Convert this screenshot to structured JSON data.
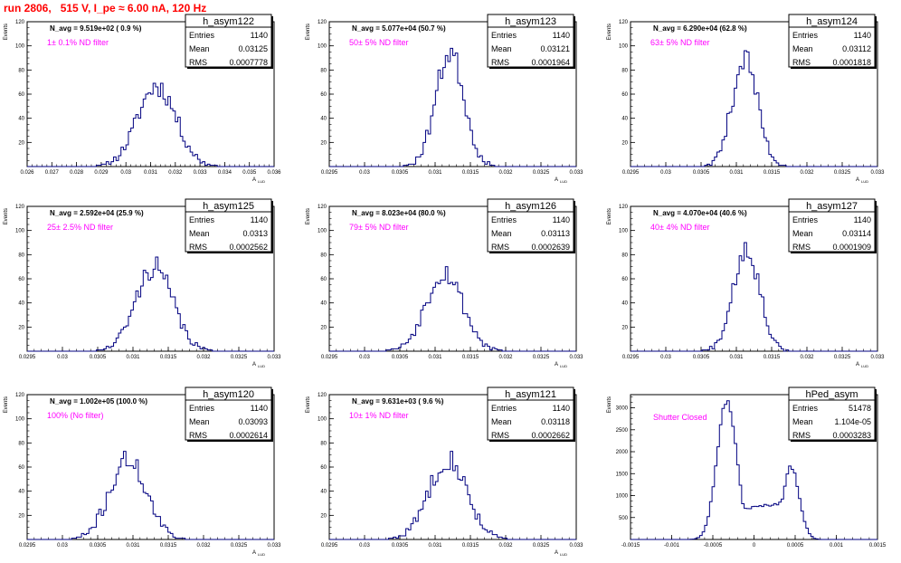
{
  "title": "run 2806,   515 V, I_pe ≈ 6.00 nA, 120 Hz",
  "stats_labels": {
    "entries": "Entries",
    "mean": "Mean",
    "rms": "RMS"
  },
  "colors": {
    "hist_line": "#000080",
    "annotation": "#ff00ff",
    "title": "#ff0000"
  },
  "chart_data": [
    {
      "type": "bar",
      "name": "h_asym122",
      "navg": "N_avg = 9.519e+02 ( 0.9 %)",
      "annotation": "1± 0.1% ND filter",
      "stats": {
        "entries": "1140",
        "mean": "0.03125",
        "rms": "0.0007778"
      },
      "ylabel": "Events",
      "xlabel": "A",
      "xlim": [
        0.026,
        0.036
      ],
      "ylim": [
        0,
        120
      ],
      "xticks": [
        "0.026",
        "0.027",
        "0.028",
        "0.029",
        "0.03",
        "0.031",
        "0.032",
        "0.033",
        "0.034",
        "0.035",
        "0.036"
      ],
      "yticks": [
        "20",
        "40",
        "60",
        "80",
        "100",
        "120"
      ],
      "hist": {
        "mean": 0.03125,
        "sigma": 0.00078,
        "peak": 67,
        "sigma2": 0,
        "peak2": 0,
        "mean2": 0,
        "seed": 11
      }
    },
    {
      "type": "bar",
      "name": "h_asym123",
      "navg": "N_avg = 5.077e+04 (50.7 %)",
      "annotation": "50± 5% ND filter",
      "stats": {
        "entries": "1140",
        "mean": "0.03121",
        "rms": "0.0001964"
      },
      "ylabel": "Events",
      "xlabel": "A",
      "xlim": [
        0.0295,
        0.033
      ],
      "ylim": [
        0,
        120
      ],
      "xticks": [
        "0.0295",
        "0.03",
        "0.0305",
        "0.031",
        "0.0315",
        "0.032",
        "0.0325",
        "0.033"
      ],
      "yticks": [
        "20",
        "40",
        "60",
        "80",
        "100",
        "120"
      ],
      "hist": {
        "mean": 0.03121,
        "sigma": 0.0002,
        "peak": 95,
        "sigma2": 0,
        "peak2": 0,
        "mean2": 0,
        "seed": 23
      }
    },
    {
      "type": "bar",
      "name": "h_asym124",
      "navg": "N_avg = 6.290e+04 (62.8 %)",
      "annotation": "63± 5% ND filter",
      "stats": {
        "entries": "1140",
        "mean": "0.03112",
        "rms": "0.0001818"
      },
      "ylabel": "Events",
      "xlabel": "A",
      "xlim": [
        0.0295,
        0.033
      ],
      "ylim": [
        0,
        120
      ],
      "xticks": [
        "0.0295",
        "0.03",
        "0.0305",
        "0.031",
        "0.0315",
        "0.032",
        "0.0325",
        "0.033"
      ],
      "yticks": [
        "20",
        "40",
        "60",
        "80",
        "100",
        "120"
      ],
      "hist": {
        "mean": 0.03112,
        "sigma": 0.00018,
        "peak": 90,
        "sigma2": 0,
        "peak2": 0,
        "mean2": 0,
        "seed": 37
      }
    },
    {
      "type": "bar",
      "name": "h_asym125",
      "navg": "N_avg = 2.592e+04 (25.9 %)",
      "annotation": "25± 2.5% ND filter",
      "stats": {
        "entries": "1140",
        "mean": "0.0313",
        "rms": "0.0002562"
      },
      "ylabel": "Events",
      "xlabel": "A",
      "xlim": [
        0.0295,
        0.033
      ],
      "ylim": [
        0,
        120
      ],
      "xticks": [
        "0.0295",
        "0.03",
        "0.0305",
        "0.031",
        "0.0315",
        "0.032",
        "0.0325",
        "0.033"
      ],
      "yticks": [
        "20",
        "40",
        "60",
        "80",
        "100",
        "120"
      ],
      "hist": {
        "mean": 0.0313,
        "sigma": 0.00026,
        "peak": 70,
        "sigma2": 0,
        "peak2": 0,
        "mean2": 0,
        "seed": 41
      }
    },
    {
      "type": "bar",
      "name": "h_asym126",
      "navg": "N_avg = 8.023e+04 (80.0 %)",
      "annotation": "79± 5% ND filter",
      "stats": {
        "entries": "1140",
        "mean": "0.03113",
        "rms": "0.0002639"
      },
      "ylabel": "Events",
      "xlabel": "A",
      "xlim": [
        0.0295,
        0.033
      ],
      "ylim": [
        0,
        120
      ],
      "xticks": [
        "0.0295",
        "0.03",
        "0.0305",
        "0.031",
        "0.0315",
        "0.032",
        "0.0325",
        "0.033"
      ],
      "yticks": [
        "20",
        "40",
        "60",
        "80",
        "100",
        "120"
      ],
      "hist": {
        "mean": 0.03113,
        "sigma": 0.00026,
        "peak": 66,
        "sigma2": 0,
        "peak2": 0,
        "mean2": 0,
        "seed": 53
      }
    },
    {
      "type": "bar",
      "name": "h_asym127",
      "navg": "N_avg = 4.070e+04 (40.6 %)",
      "annotation": "40± 4% ND filter",
      "stats": {
        "entries": "1140",
        "mean": "0.03114",
        "rms": "0.0001909"
      },
      "ylabel": "Events",
      "xlabel": "A",
      "xlim": [
        0.0295,
        0.033
      ],
      "ylim": [
        0,
        120
      ],
      "xticks": [
        "0.0295",
        "0.03",
        "0.0305",
        "0.031",
        "0.0315",
        "0.032",
        "0.0325",
        "0.033"
      ],
      "yticks": [
        "20",
        "40",
        "60",
        "80",
        "100",
        "120"
      ],
      "hist": {
        "mean": 0.03114,
        "sigma": 0.00019,
        "peak": 86,
        "sigma2": 0,
        "peak2": 0,
        "mean2": 0,
        "seed": 67
      }
    },
    {
      "type": "bar",
      "name": "h_asym120",
      "navg": "N_avg = 1.002e+05 (100.0 %)",
      "annotation": "100% (No filter)",
      "stats": {
        "entries": "1140",
        "mean": "0.03093",
        "rms": "0.0002614"
      },
      "ylabel": "Events",
      "xlabel": "A",
      "xlim": [
        0.0295,
        0.033
      ],
      "ylim": [
        0,
        120
      ],
      "xticks": [
        "0.0295",
        "0.03",
        "0.0305",
        "0.031",
        "0.0315",
        "0.032",
        "0.0325",
        "0.033"
      ],
      "yticks": [
        "20",
        "40",
        "60",
        "80",
        "100",
        "120"
      ],
      "hist": {
        "mean": 0.03093,
        "sigma": 0.00026,
        "peak": 66,
        "sigma2": 0,
        "peak2": 0,
        "mean2": 0,
        "seed": 71
      }
    },
    {
      "type": "bar",
      "name": "h_asym121",
      "navg": "N_avg = 9.631e+03 ( 9.6 %)",
      "annotation": "10± 1% ND filter",
      "stats": {
        "entries": "1140",
        "mean": "0.03118",
        "rms": "0.0002662"
      },
      "ylabel": "Events",
      "xlabel": "A",
      "xlim": [
        0.0295,
        0.033
      ],
      "ylim": [
        0,
        120
      ],
      "xticks": [
        "0.0295",
        "0.03",
        "0.0305",
        "0.031",
        "0.0315",
        "0.032",
        "0.0325",
        "0.033"
      ],
      "yticks": [
        "20",
        "40",
        "60",
        "80",
        "100",
        "120"
      ],
      "hist": {
        "mean": 0.03118,
        "sigma": 0.00027,
        "peak": 67,
        "sigma2": 0,
        "peak2": 0,
        "mean2": 0,
        "seed": 83
      }
    },
    {
      "type": "bar",
      "name": "hPed_asym",
      "navg": "",
      "annotation": "Shutter Closed",
      "stats": {
        "entries": "51478",
        "mean": "1.104e-05",
        "rms": "0.0003283"
      },
      "ylabel": "Events",
      "xlabel": "",
      "xlim": [
        -0.0015,
        0.0015
      ],
      "ylim": [
        0,
        3300
      ],
      "xticks": [
        "-0.0015",
        "-0.001",
        "-0.0005",
        "0",
        "0.0005",
        "0.001",
        "0.0015"
      ],
      "yticks": [
        "500",
        "1000",
        "1500",
        "2000",
        "2500",
        "3000"
      ],
      "hist": {
        "mean": -0.00033,
        "sigma": 0.00012,
        "peak": 3150,
        "mean2": 0.00045,
        "sigma2": 0.0001,
        "peak2": 1650,
        "floor": 750,
        "seed": 97
      }
    }
  ]
}
